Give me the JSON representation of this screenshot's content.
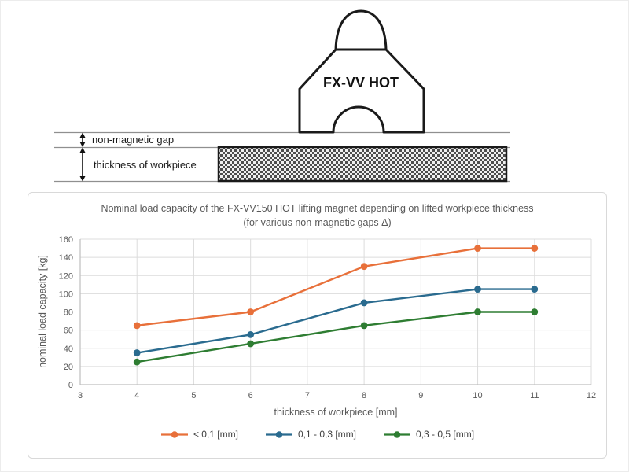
{
  "diagram": {
    "magnet_label": "FX-VV HOT",
    "gap_label": "non-magnetic gap",
    "workpiece_label": "thickness of workpiece"
  },
  "chart_data": {
    "type": "line",
    "title_line1": "Nominal load capacity of the FX-VV150 HOT lifting magnet depending on lifted workpiece thickness",
    "title_line2": "(for various non-magnetic gaps Δ)",
    "xlabel": "thickness of workpiece [mm]",
    "ylabel": "nominal load capacity [kg]",
    "x": [
      4,
      6,
      8,
      10,
      11
    ],
    "series": [
      {
        "name": "< 0,1 [mm]",
        "color": "#E8703A",
        "values": [
          65,
          80,
          130,
          150,
          150
        ]
      },
      {
        "name": "0,1 - 0,3 [mm]",
        "color": "#2A6B8F",
        "values": [
          35,
          55,
          90,
          105,
          105
        ]
      },
      {
        "name": "0,3 - 0,5 [mm]",
        "color": "#2E7D32",
        "values": [
          25,
          45,
          65,
          80,
          80
        ]
      }
    ],
    "xlim": [
      3,
      12
    ],
    "ylim": [
      0,
      160
    ],
    "x_ticks": [
      3,
      4,
      5,
      6,
      7,
      8,
      9,
      10,
      11,
      12
    ],
    "y_ticks": [
      0,
      20,
      40,
      60,
      80,
      100,
      120,
      140,
      160
    ],
    "grid": true,
    "legend_position": "bottom",
    "colors": {
      "grid": "#dcdcdc",
      "axis": "#bfbfbf",
      "axis_text": "#595959",
      "title": "#595959"
    }
  }
}
